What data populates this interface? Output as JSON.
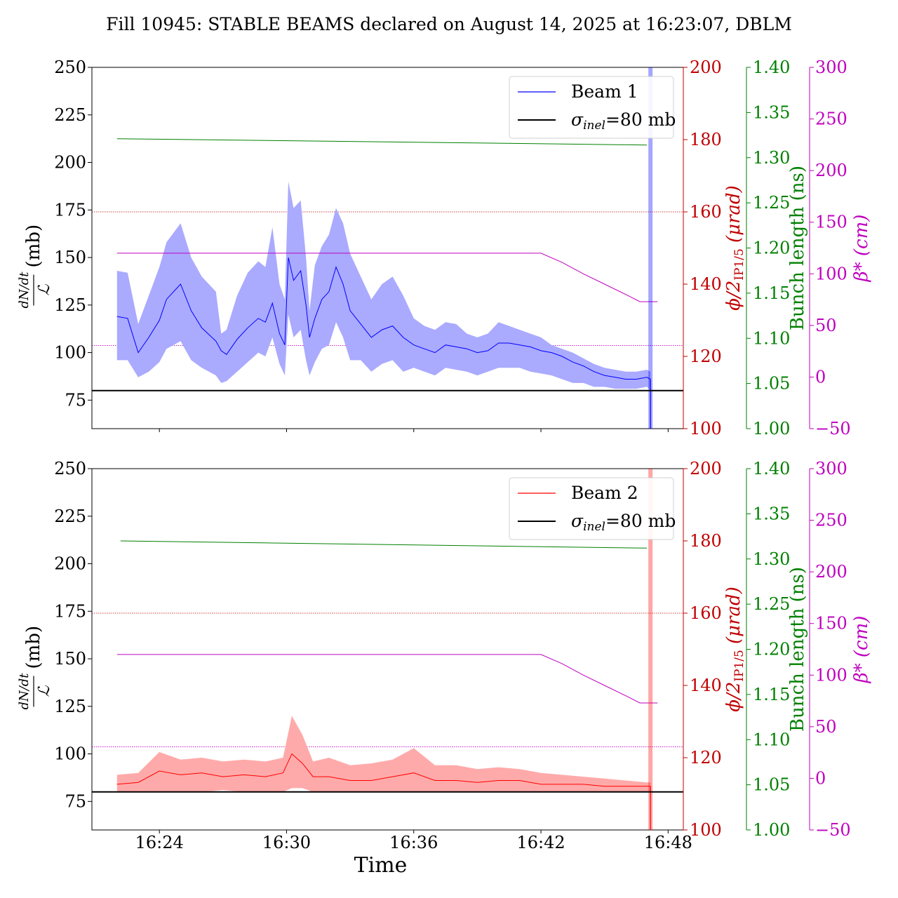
{
  "title": "Fill 10945: STABLE BEAMS declared on August 14, 2025 at 16:23:07, DBLM",
  "xlabel": "Time",
  "colors": {
    "beam1": "#0000ff",
    "beam2": "#ff0000",
    "crossing": "#c00000",
    "bunch": "#008000",
    "beta": "#bf00bf",
    "reference": "#000000"
  },
  "axes": {
    "left": {
      "label": "dN/dt / ℒ (mb)",
      "ylim": [
        60,
        250
      ],
      "ticks": [
        75,
        100,
        125,
        150,
        175,
        200,
        225,
        250
      ]
    },
    "crossing": {
      "label": "ϕ/2 IP1/5 (μrad)",
      "ylim": [
        100,
        200
      ],
      "ticks": [
        100,
        120,
        140,
        160,
        180,
        200
      ]
    },
    "bunch": {
      "label": "Bunch length (ns)",
      "ylim": [
        1.0,
        1.4
      ],
      "ticks": [
        "1.00",
        "1.05",
        "1.10",
        "1.15",
        "1.20",
        "1.25",
        "1.30",
        "1.35",
        "1.40"
      ]
    },
    "beta": {
      "label": "β* (cm)",
      "ylim": [
        -50,
        300
      ],
      "ticks": [
        "−50",
        "0",
        "50",
        "100",
        "150",
        "200",
        "250",
        "300"
      ]
    },
    "x": {
      "label": "Time",
      "xlim": [
        "16:20:49",
        "16:48:43"
      ],
      "ticks": [
        "16:24",
        "16:30",
        "16:36",
        "16:42",
        "16:48"
      ]
    }
  },
  "chart_data": [
    {
      "type": "line",
      "panel": "top",
      "legend": [
        "Beam 1",
        "σinel=80 mb"
      ],
      "legend_position": "top-right",
      "reference_line": {
        "name": "σinel=80 mb",
        "value": 80
      },
      "series": [
        {
          "name": "Beam 1",
          "axis": "left",
          "x": [
            "16:22:00",
            "16:22:30",
            "16:23:00",
            "16:23:30",
            "16:24:00",
            "16:24:20",
            "16:25:00",
            "16:25:30",
            "16:26:00",
            "16:26:40",
            "16:26:55",
            "16:27:10",
            "16:27:40",
            "16:28:10",
            "16:28:40",
            "16:29:00",
            "16:29:20",
            "16:29:40",
            "16:29:55",
            "16:30:05",
            "16:30:20",
            "16:30:40",
            "16:30:55",
            "16:31:05",
            "16:31:20",
            "16:31:40",
            "16:32:00",
            "16:32:20",
            "16:32:40",
            "16:33:00",
            "16:33:30",
            "16:34:00",
            "16:34:30",
            "16:35:00",
            "16:35:30",
            "16:36:00",
            "16:36:30",
            "16:37:00",
            "16:37:30",
            "16:38:00",
            "16:38:30",
            "16:39:00",
            "16:39:30",
            "16:40:00",
            "16:40:30",
            "16:41:00",
            "16:41:30",
            "16:42:00",
            "16:42:30",
            "16:43:00",
            "16:43:30",
            "16:44:00",
            "16:44:30",
            "16:45:00",
            "16:45:30",
            "16:46:00",
            "16:46:30",
            "16:47:00",
            "16:47:10"
          ],
          "y": [
            119,
            118,
            100,
            108,
            117,
            128,
            136,
            122,
            113,
            106,
            101,
            99,
            107,
            113,
            118,
            116,
            126,
            110,
            104,
            150,
            138,
            143,
            125,
            108,
            118,
            128,
            132,
            145,
            136,
            122,
            115,
            108,
            112,
            114,
            108,
            104,
            102,
            100,
            104,
            103,
            102,
            100,
            101,
            105,
            105,
            104,
            103,
            101,
            100,
            98,
            95,
            93,
            90,
            88,
            87,
            86,
            86,
            87,
            86
          ],
          "band_upper": [
            143,
            142,
            115,
            130,
            145,
            158,
            168,
            150,
            140,
            132,
            110,
            112,
            130,
            142,
            148,
            145,
            166,
            136,
            128,
            190,
            176,
            180,
            150,
            122,
            146,
            156,
            162,
            176,
            168,
            152,
            140,
            128,
            136,
            140,
            130,
            118,
            114,
            112,
            116,
            115,
            110,
            108,
            110,
            116,
            114,
            112,
            110,
            108,
            104,
            102,
            100,
            97,
            94,
            92,
            91,
            90,
            90,
            91,
            90
          ],
          "band_lower": [
            96,
            96,
            87,
            90,
            95,
            102,
            106,
            96,
            92,
            88,
            84,
            85,
            90,
            95,
            100,
            98,
            108,
            94,
            88,
            120,
            108,
            112,
            96,
            88,
            95,
            102,
            104,
            116,
            108,
            96,
            96,
            90,
            94,
            96,
            90,
            92,
            90,
            88,
            92,
            91,
            90,
            88,
            90,
            92,
            92,
            92,
            90,
            89,
            88,
            86,
            84,
            84,
            82,
            82,
            81,
            81,
            81,
            82,
            80
          ]
        },
        {
          "name": "Bunch length",
          "axis": "bunch",
          "x": [
            "16:22:00",
            "16:47:00"
          ],
          "y": [
            1.321,
            1.314
          ]
        },
        {
          "name": "β*",
          "axis": "beta",
          "x": [
            "16:22:00",
            "16:42:00",
            "16:43:00",
            "16:44:00",
            "16:45:00",
            "16:46:00",
            "16:46:40",
            "16:47:30"
          ],
          "y": [
            120,
            120,
            111,
            100,
            90,
            80,
            73,
            73
          ]
        },
        {
          "name": "Crossing angle",
          "axis": "crossing",
          "x": [
            "16:20:49",
            "16:48:43"
          ],
          "y": [
            160,
            160
          ]
        },
        {
          "name": "Crossing angle (IP5)",
          "axis": "crossing",
          "x": [
            "16:20:49",
            "16:48:43"
          ],
          "y": [
            123,
            123
          ]
        }
      ],
      "dump_marker": {
        "x": "16:47:10"
      }
    },
    {
      "type": "line",
      "panel": "bottom",
      "legend": [
        "Beam 2",
        "σinel=80 mb"
      ],
      "legend_position": "top-right",
      "reference_line": {
        "name": "σinel=80 mb",
        "value": 80
      },
      "series": [
        {
          "name": "Beam 2",
          "axis": "left",
          "x": [
            "16:22:00",
            "16:23:00",
            "16:24:00",
            "16:25:00",
            "16:26:00",
            "16:27:00",
            "16:28:00",
            "16:29:00",
            "16:29:50",
            "16:30:15",
            "16:30:45",
            "16:31:15",
            "16:32:00",
            "16:33:00",
            "16:34:00",
            "16:35:00",
            "16:36:00",
            "16:37:00",
            "16:38:00",
            "16:39:00",
            "16:40:00",
            "16:41:00",
            "16:42:00",
            "16:43:00",
            "16:44:00",
            "16:45:00",
            "16:46:00",
            "16:47:00",
            "16:47:10"
          ],
          "y": [
            84,
            85,
            91,
            89,
            90,
            88,
            89,
            88,
            90,
            100,
            95,
            88,
            88,
            86,
            86,
            88,
            90,
            86,
            86,
            85,
            86,
            86,
            84,
            84,
            84,
            83,
            83,
            83,
            83
          ],
          "band_upper": [
            89,
            90,
            101,
            97,
            98,
            96,
            97,
            96,
            98,
            120,
            110,
            96,
            98,
            94,
            95,
            97,
            103,
            94,
            94,
            92,
            93,
            92,
            90,
            89,
            88,
            87,
            86,
            85,
            85
          ],
          "band_lower": [
            80,
            80,
            80,
            80,
            80,
            81,
            80,
            80,
            80,
            82,
            82,
            80,
            80,
            80,
            80,
            80,
            80,
            80,
            80,
            80,
            80,
            80,
            80,
            80,
            80,
            80,
            80,
            80,
            80
          ]
        },
        {
          "name": "Bunch length",
          "axis": "bunch",
          "x": [
            "16:22:10",
            "16:47:00"
          ],
          "y": [
            1.32,
            1.312
          ]
        },
        {
          "name": "β*",
          "axis": "beta",
          "x": [
            "16:22:00",
            "16:42:00",
            "16:43:00",
            "16:44:00",
            "16:45:00",
            "16:46:00",
            "16:46:40",
            "16:47:30"
          ],
          "y": [
            120,
            120,
            111,
            100,
            90,
            80,
            73,
            73
          ]
        },
        {
          "name": "Crossing angle",
          "axis": "crossing",
          "x": [
            "16:20:49",
            "16:48:43"
          ],
          "y": [
            160,
            160
          ]
        },
        {
          "name": "Crossing angle (IP5)",
          "axis": "crossing",
          "x": [
            "16:20:49",
            "16:48:43"
          ],
          "y": [
            123,
            123
          ]
        }
      ],
      "dump_marker": {
        "x": "16:47:10"
      }
    }
  ]
}
